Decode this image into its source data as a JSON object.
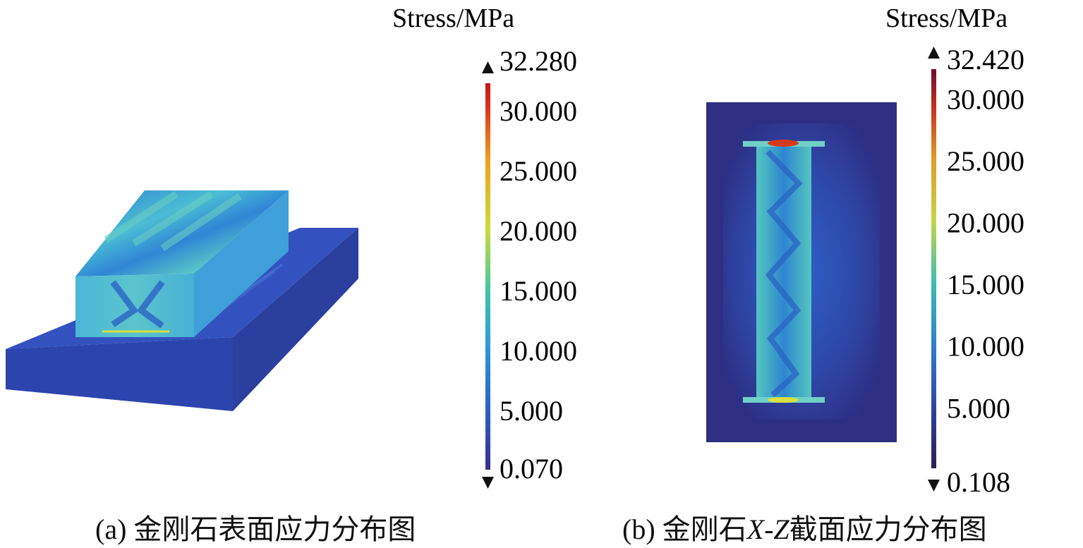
{
  "panel_a": {
    "caption_prefix": "(a) ",
    "caption_text": "金刚石表面应力分布图",
    "legend": {
      "title": "Stress/MPa",
      "max_label": "32.280",
      "min_label": "0.070",
      "ticks": [
        "30.000",
        "25.000",
        "20.000",
        "15.000",
        "10.000",
        "5.000"
      ],
      "tick_values": [
        30,
        25,
        20,
        15,
        10,
        5
      ],
      "range": [
        0.07,
        32.28
      ]
    }
  },
  "panel_b": {
    "caption_prefix": "(b) ",
    "caption_text_1": "金刚石",
    "caption_italic": "X-Z",
    "caption_text_2": "截面应力分布图",
    "legend": {
      "title": "Stress/MPa",
      "max_label": "32.420",
      "min_label": "0.108",
      "ticks": [
        "30.000",
        "25.000",
        "20.000",
        "15.000",
        "10.000",
        "5.000"
      ],
      "tick_values": [
        30,
        25,
        20,
        15,
        10,
        5
      ],
      "range": [
        0.108,
        32.42
      ]
    }
  },
  "colors": {
    "low": "#3a2f8a",
    "mid_low": "#2e8fd8",
    "mid": "#3dc4a8",
    "mid_high": "#c8dc3a",
    "high": "#e24a1c",
    "max": "#7a1030",
    "substrate": "#2f49b5",
    "background_b": "#2d2f82"
  }
}
